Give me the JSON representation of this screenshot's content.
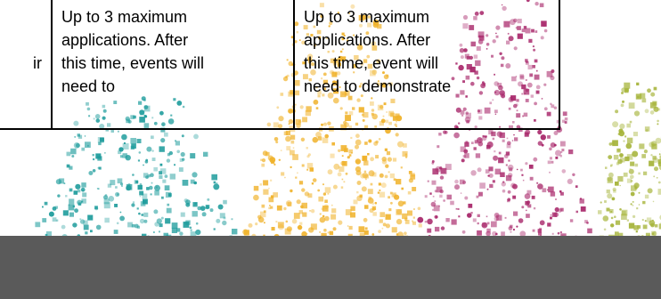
{
  "table": {
    "col0_fragment": "ir",
    "col1_text": "Up to 3 maximum\napplications.  After\nthis time, events will\nneed to",
    "col2_text": "Up to 3 maximum\napplications.  After\nthis time, event will\nneed to demonstrate"
  },
  "background": {
    "band_color": "#5a5a5a",
    "splash_colors": [
      "#1e9c9c",
      "#f0b22a",
      "#a8276a",
      "#a6b43a"
    ]
  }
}
